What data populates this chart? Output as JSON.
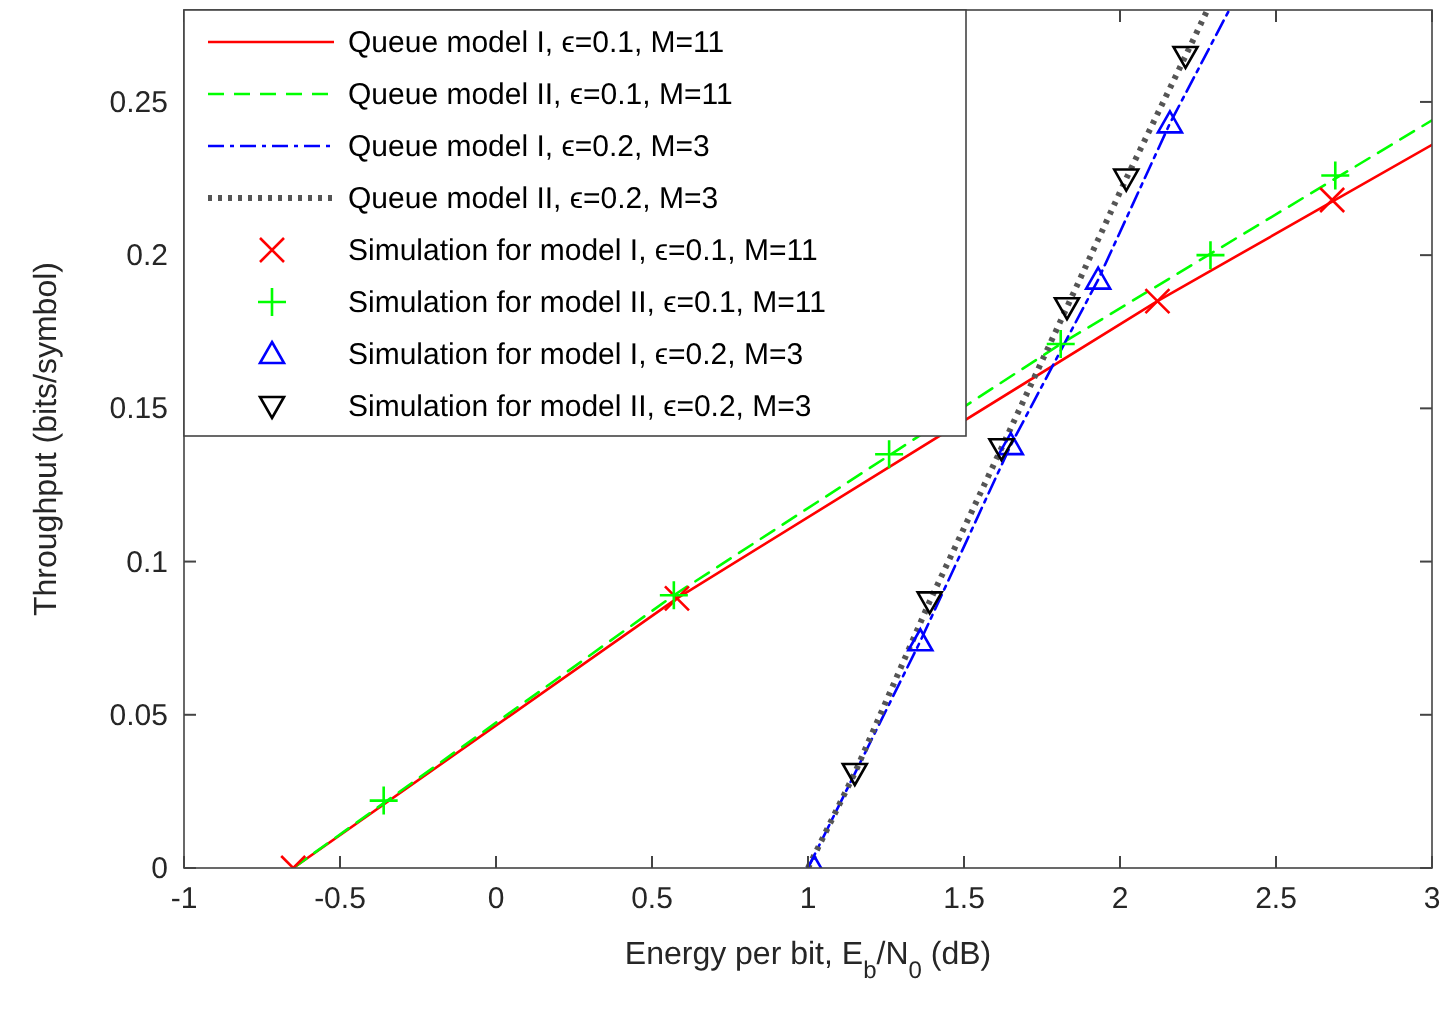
{
  "chart_data": {
    "type": "line",
    "xlabel": "Energy per bit, E$_{b}$/N$_{0}$ (dB)",
    "ylabel": "Throughput (bits/symbol)",
    "xlim": [
      -1,
      3
    ],
    "ylim": [
      0,
      0.28
    ],
    "xticks": [
      -1,
      -0.5,
      0,
      0.5,
      1,
      1.5,
      2,
      2.5,
      3
    ],
    "yticks": [
      0,
      0.05,
      0.1,
      0.15,
      0.2,
      0.25
    ],
    "grid": false,
    "legend": "top left",
    "series": [
      {
        "name": "Queue model I, ϵ=0.1, M=11",
        "type": "line",
        "color": "#ff0000",
        "line_style": "solid",
        "marker": "none",
        "x": [
          -0.65,
          0.58,
          2.12,
          3
        ],
        "values": [
          0,
          0.088,
          0.185,
          0.236
        ]
      },
      {
        "name": "Queue model II, ϵ=0.1, M=11",
        "type": "line",
        "color": "#00ff00",
        "line_style": "dashed",
        "marker": "none",
        "x": [
          -0.65,
          0.57,
          1.81,
          3
        ],
        "values": [
          0,
          0.089,
          0.171,
          0.244
        ]
      },
      {
        "name": "Queue model I, ϵ=0.2, M=3",
        "type": "line",
        "color": "#0000ff",
        "line_style": "dashdot",
        "marker": "none",
        "x": [
          1.0,
          1.36,
          1.65,
          1.93,
          2.16,
          2.35
        ],
        "values": [
          0,
          0.074,
          0.138,
          0.192,
          0.243,
          0.28
        ]
      },
      {
        "name": "Queue model II, ϵ=0.2, M=3",
        "type": "line",
        "color": "#555555",
        "line_style": "dotted",
        "marker": "none",
        "x": [
          1.0,
          1.15,
          1.39,
          1.62,
          1.83,
          2.02,
          2.21,
          2.28
        ],
        "values": [
          0,
          0.031,
          0.087,
          0.137,
          0.183,
          0.225,
          0.265,
          0.28
        ]
      },
      {
        "name": "Simulation for model I, ϵ=0.1, M=11",
        "type": "scatter",
        "color": "#ff0000",
        "marker": "x",
        "x": [
          -0.65,
          0.58,
          2.12,
          2.68
        ],
        "values": [
          0,
          0.088,
          0.185,
          0.218
        ]
      },
      {
        "name": "Simulation for model II, ϵ=0.1, M=11",
        "type": "scatter",
        "color": "#00ff00",
        "marker": "cross",
        "x": [
          -0.36,
          0.57,
          1.26,
          1.81,
          2.29,
          2.69
        ],
        "values": [
          0.022,
          0.089,
          0.135,
          0.171,
          0.2,
          0.226
        ]
      },
      {
        "name": "Simulation for model I, ϵ=0.2, M=3",
        "type": "scatter",
        "color": "#0000ff",
        "marker": "triangle",
        "x": [
          1.02,
          1.36,
          1.65,
          1.93,
          2.16
        ],
        "values": [
          0,
          0.074,
          0.138,
          0.192,
          0.243
        ]
      },
      {
        "name": "Simulation for model II, ϵ=0.2, M=3",
        "type": "scatter",
        "color": "#000000",
        "marker": "triangle-down",
        "x": [
          1.15,
          1.39,
          1.62,
          1.83,
          2.02,
          2.21
        ],
        "values": [
          0.031,
          0.087,
          0.137,
          0.183,
          0.225,
          0.265
        ]
      }
    ]
  }
}
